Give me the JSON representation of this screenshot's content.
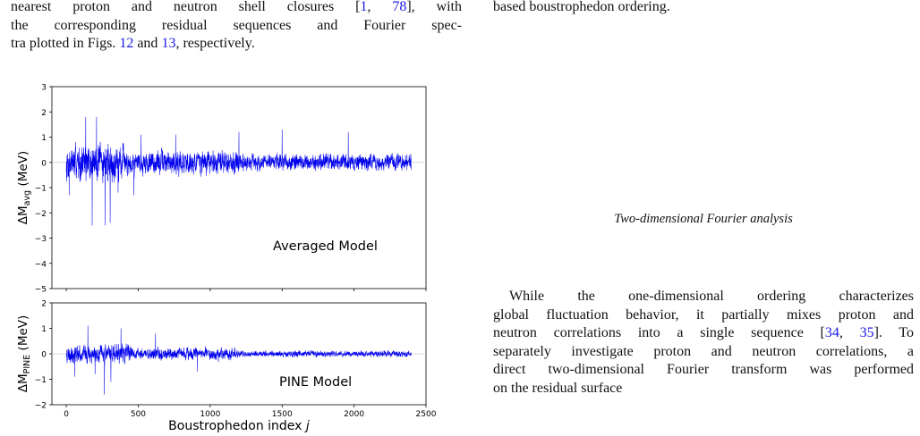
{
  "left_column": {
    "lines": [
      {
        "pre": "nearest proton and neutron shell closures [",
        "r1": "1",
        "mid": ", ",
        "r2": "78",
        "post": "], with"
      },
      {
        "text": "the corresponding residual sequences and Fourier spec-"
      },
      {
        "pre": "tra plotted in Figs. ",
        "r1": "12",
        "mid": " and ",
        "r2": "13",
        "post": ", respectively."
      }
    ]
  },
  "right_column": {
    "top_line": "based boustrophedon ordering.",
    "subsection_title": "Two-dimensional Fourier analysis",
    "paragraph_lines": [
      {
        "text": "While the one-dimensional ordering characterizes"
      },
      {
        "text": "global fluctuation behavior, it partially mixes proton and"
      },
      {
        "pre": "neutron correlations into a single sequence [",
        "r1": "34",
        "mid": ", ",
        "r2": "35",
        "post": "].  To"
      },
      {
        "text": "separately investigate proton and neutron correlations, a"
      },
      {
        "text": "direct two-dimensional Fourier transform was performed"
      },
      {
        "text": "on the residual surface"
      }
    ]
  },
  "colors": {
    "trace": "#0000ee",
    "reference_link": "#1a1ae6",
    "axis": "#000000"
  },
  "chart_data": [
    {
      "type": "line",
      "panel": "top",
      "annotation": "Averaged Model",
      "ylabel_base": "ΔM",
      "ylabel_sub": "avg",
      "ylabel_unit": "(MeV)",
      "xlim": [
        -100,
        2500
      ],
      "ylim": [
        -5,
        3
      ],
      "yticks": [
        "3",
        "2",
        "1",
        "0",
        "−1",
        "−2",
        "−3",
        "−4",
        "−5"
      ],
      "ytick_values": [
        3,
        2,
        1,
        0,
        -1,
        -2,
        -3,
        -4,
        -5
      ],
      "series": [
        {
          "values_description_free": true,
          "n_points": 2400,
          "envelope_segments": [
            {
              "x": [
                0,
                400
              ],
              "amp": 0.9
            },
            {
              "x": [
                400,
                1200
              ],
              "amp": 0.6
            },
            {
              "x": [
                1200,
                2400
              ],
              "amp": 0.4
            }
          ],
          "spikes": [
            {
              "x": 20,
              "y": -1.3
            },
            {
              "x": 135,
              "y": 1.8
            },
            {
              "x": 180,
              "y": -2.5
            },
            {
              "x": 210,
              "y": 1.8
            },
            {
              "x": 270,
              "y": -2.5
            },
            {
              "x": 305,
              "y": -2.4
            },
            {
              "x": 360,
              "y": -1.2
            },
            {
              "x": 470,
              "y": -1.3
            },
            {
              "x": 520,
              "y": 1.1
            },
            {
              "x": 760,
              "y": 1.1
            },
            {
              "x": 1200,
              "y": 1.2
            },
            {
              "x": 1500,
              "y": 1.3
            },
            {
              "x": 1960,
              "y": 1.2
            }
          ]
        }
      ]
    },
    {
      "type": "line",
      "panel": "bottom",
      "annotation": "PINE Model",
      "ylabel_base": "ΔM",
      "ylabel_sub": "PINE",
      "ylabel_unit": "(MeV)",
      "xlabel_text": "Boustrophedon index ",
      "xlabel_var": "j",
      "xlim": [
        -100,
        2500
      ],
      "ylim": [
        -2,
        2
      ],
      "xticks": [
        "0",
        "500",
        "1000",
        "1500",
        "2000",
        "2500"
      ],
      "xtick_values": [
        0,
        500,
        1000,
        1500,
        2000,
        2500
      ],
      "yticks": [
        "2",
        "1",
        "0",
        "−1",
        "−2"
      ],
      "ytick_values": [
        2,
        1,
        0,
        -1,
        -2
      ],
      "series": [
        {
          "n_points": 2400,
          "envelope_segments": [
            {
              "x": [
                0,
                450
              ],
              "amp": 0.45
            },
            {
              "x": [
                450,
                1200
              ],
              "amp": 0.3
            },
            {
              "x": [
                1200,
                2400
              ],
              "amp": 0.15
            }
          ],
          "spikes": [
            {
              "x": 60,
              "y": -0.9
            },
            {
              "x": 150,
              "y": 1.1
            },
            {
              "x": 200,
              "y": -0.8
            },
            {
              "x": 265,
              "y": -1.6
            },
            {
              "x": 310,
              "y": -1.1
            },
            {
              "x": 380,
              "y": 1.0
            },
            {
              "x": 620,
              "y": 0.8
            },
            {
              "x": 910,
              "y": -0.7
            }
          ]
        }
      ]
    }
  ]
}
